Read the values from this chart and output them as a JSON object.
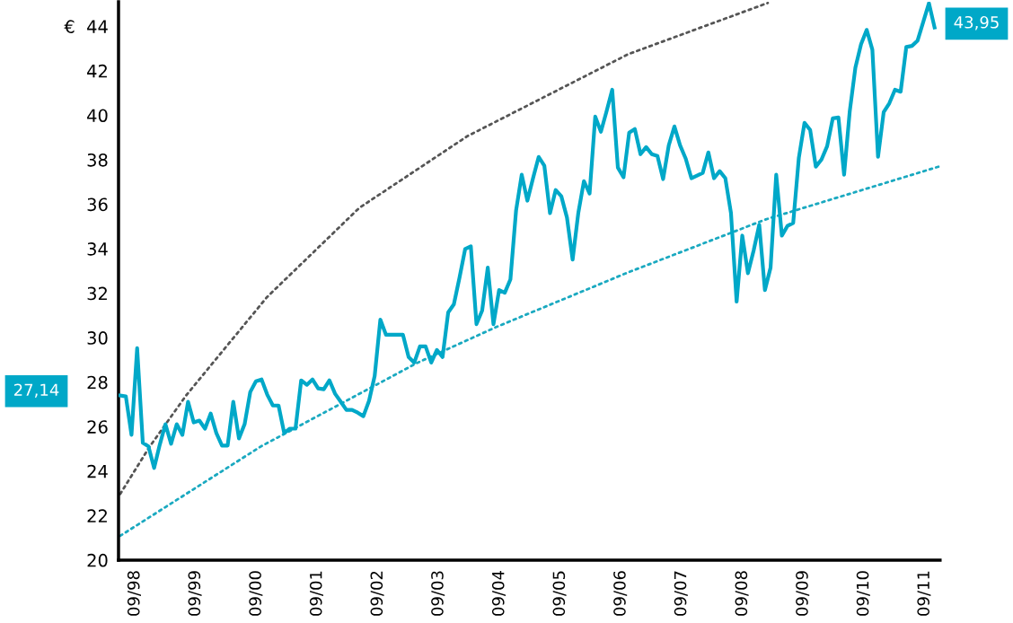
{
  "chart_data": {
    "type": "line",
    "xlim": [
      "1998-06-23",
      "2011-12-31"
    ],
    "ylim": [
      20,
      45.1
    ],
    "xticks": [
      {
        "value": "1998-09-30",
        "label": "09/98"
      },
      {
        "value": "1999-09-30",
        "label": "09/99"
      },
      {
        "value": "2000-09-30",
        "label": "09/00"
      },
      {
        "value": "2001-09-30",
        "label": "09/01"
      },
      {
        "value": "2002-09-30",
        "label": "09/02"
      },
      {
        "value": "2003-09-30",
        "label": "09/03"
      },
      {
        "value": "2004-09-30",
        "label": "09/04"
      },
      {
        "value": "2005-09-30",
        "label": "09/05"
      },
      {
        "value": "2006-09-30",
        "label": "09/06"
      },
      {
        "value": "2007-09-30",
        "label": "09/07"
      },
      {
        "value": "2008-09-30",
        "label": "09/08"
      },
      {
        "value": "2009-09-30",
        "label": "09/09"
      },
      {
        "value": "2010-09-30",
        "label": "09/10"
      },
      {
        "value": "2011-09-30",
        "label": "09/11"
      }
    ],
    "yticks": [
      20,
      22,
      24,
      26,
      28,
      30,
      32,
      34,
      36,
      38,
      40,
      42,
      {
        "value": 44,
        "label": "€  44"
      }
    ],
    "marker": "none",
    "annotations": [
      "27,14",
      "43,95"
    ],
    "series": [
      {
        "color": "#00a8c8",
        "line_style": "solid",
        "x": [
          "1998-07-03",
          "1998-08-06",
          "1998-09-09",
          "1998-10-13",
          "1998-11-16",
          "1998-12-20",
          "1999-01-23",
          "1999-02-26",
          "1999-04-01",
          "1999-05-05",
          "1999-06-08",
          "1999-07-12",
          "1999-08-15",
          "1999-09-18",
          "1999-10-22",
          "1999-11-25",
          "1999-12-29",
          "2000-02-01",
          "2000-03-06",
          "2000-04-09",
          "2000-05-13",
          "2000-06-16",
          "2000-07-20",
          "2000-08-23",
          "2000-09-26",
          "2000-10-30",
          "2000-12-03",
          "2001-01-06",
          "2001-02-09",
          "2001-03-15",
          "2001-04-18",
          "2001-05-22",
          "2001-06-25",
          "2001-07-29",
          "2001-09-01",
          "2001-10-05",
          "2001-11-08",
          "2001-12-12",
          "2002-01-15",
          "2002-02-18",
          "2002-03-24",
          "2002-04-27",
          "2002-05-31",
          "2002-07-04",
          "2002-08-07",
          "2002-09-10",
          "2002-10-14",
          "2002-11-17",
          "2002-12-21",
          "2003-01-24",
          "2003-02-27",
          "2003-04-02",
          "2003-05-06",
          "2003-06-09",
          "2003-07-13",
          "2003-08-16",
          "2003-09-19",
          "2003-10-23",
          "2003-11-26",
          "2003-12-30",
          "2004-02-02",
          "2004-03-07",
          "2004-04-10",
          "2004-05-14",
          "2004-06-17",
          "2004-07-21",
          "2004-08-24",
          "2004-09-27",
          "2004-10-31",
          "2004-12-04",
          "2005-01-07",
          "2005-02-10",
          "2005-03-16",
          "2005-04-19",
          "2005-05-23",
          "2005-06-26",
          "2005-07-30",
          "2005-09-02",
          "2005-10-06",
          "2005-11-09",
          "2005-12-13",
          "2006-01-16",
          "2006-02-19",
          "2006-03-25",
          "2006-04-28",
          "2006-06-01",
          "2006-07-05",
          "2006-08-08",
          "2006-09-11",
          "2006-10-15",
          "2006-11-18",
          "2006-12-22",
          "2007-01-25",
          "2007-02-28",
          "2007-04-03",
          "2007-05-07",
          "2007-06-10",
          "2007-07-14",
          "2007-08-17",
          "2007-09-20",
          "2007-10-24",
          "2007-11-27",
          "2007-12-31",
          "2008-02-03",
          "2008-03-08",
          "2008-04-11",
          "2008-05-15",
          "2008-06-18",
          "2008-07-22",
          "2008-08-25",
          "2008-09-28",
          "2008-11-01",
          "2008-12-05",
          "2009-01-08",
          "2009-02-11",
          "2009-03-17",
          "2009-04-20",
          "2009-05-24",
          "2009-06-27",
          "2009-07-31",
          "2009-09-03",
          "2009-10-07",
          "2009-11-10",
          "2009-12-14",
          "2010-01-17",
          "2010-02-20",
          "2010-03-26",
          "2010-04-29",
          "2010-06-02",
          "2010-07-06",
          "2010-08-09",
          "2010-09-12",
          "2010-10-16",
          "2010-11-19",
          "2010-12-23",
          "2011-01-26",
          "2011-03-01",
          "2011-04-04",
          "2011-05-08",
          "2011-06-11",
          "2011-07-15",
          "2011-08-18",
          "2011-09-21",
          "2011-10-25",
          "2011-11-28"
        ],
        "values": [
          27.4,
          27.36,
          25.63,
          29.53,
          25.27,
          25.11,
          24.14,
          25.19,
          26.11,
          25.23,
          26.11,
          25.63,
          27.12,
          26.19,
          26.27,
          25.91,
          26.59,
          25.71,
          25.15,
          25.15,
          27.12,
          25.47,
          26.11,
          27.56,
          28.04,
          28.12,
          27.44,
          26.95,
          26.95,
          25.71,
          25.91,
          25.91,
          28.08,
          27.88,
          28.12,
          27.72,
          27.68,
          28.08,
          27.48,
          27.12,
          26.75,
          26.75,
          26.63,
          26.47,
          27.16,
          28.28,
          30.81,
          30.13,
          30.13,
          30.13,
          30.13,
          29.13,
          28.88,
          29.61,
          29.61,
          28.88,
          29.45,
          29.13,
          31.14,
          31.5,
          32.7,
          33.99,
          34.11,
          30.61,
          31.22,
          33.15,
          30.61,
          32.14,
          32.02,
          32.62,
          35.72,
          37.33,
          36.16,
          37.17,
          38.13,
          37.73,
          35.6,
          36.64,
          36.36,
          35.4,
          33.51,
          35.6,
          37.04,
          36.48,
          39.94,
          39.26,
          40.18,
          41.15,
          37.65,
          37.21,
          39.22,
          39.38,
          38.25,
          38.57,
          38.25,
          38.17,
          37.13,
          38.65,
          39.5,
          38.65,
          38.05,
          37.17,
          37.29,
          37.41,
          38.33,
          37.17,
          37.49,
          37.17,
          35.6,
          31.62,
          34.59,
          32.9,
          33.91,
          35.08,
          32.14,
          33.15,
          37.33,
          34.59,
          35.03,
          35.16,
          38.09,
          39.66,
          39.34,
          37.69,
          38.01,
          38.61,
          39.86,
          39.9,
          37.33,
          40.18,
          42.15,
          43.2,
          43.84,
          42.95,
          38.13,
          40.14,
          40.54,
          41.15,
          41.06,
          43.07,
          43.12,
          43.36,
          44.2,
          45.04,
          43.95
        ]
      },
      {
        "color": "#555555",
        "line_style": "dotted",
        "x": [
          "1998-07-03",
          "1998-12-28",
          "1999-08-03",
          "2000-12-01",
          "2002-06-10",
          "2004-03-20",
          "2006-11-13",
          "2009-02-28"
        ],
        "values": [
          22.97,
          25.11,
          27.4,
          31.82,
          35.84,
          39.06,
          42.75,
          45.05
        ]
      },
      {
        "color": "#1aa9c0",
        "line_style": "dotted",
        "x": [
          "1998-07-03",
          "2000-10-26",
          "2003-05-27",
          "2004-09-13",
          "2006-11-13",
          "2009-02-17",
          "2011-12-31"
        ],
        "values": [
          21.09,
          25.11,
          28.88,
          30.49,
          32.94,
          35.32,
          37.71
        ]
      }
    ]
  }
}
